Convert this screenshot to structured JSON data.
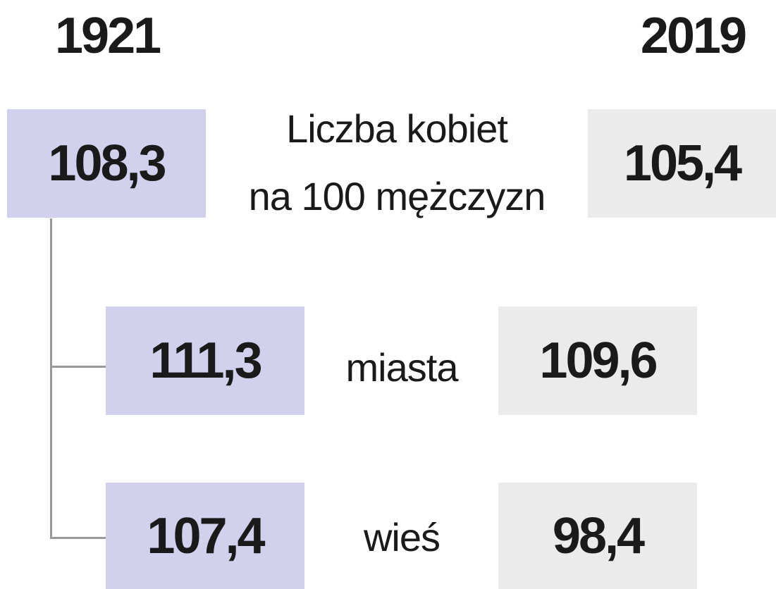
{
  "years": [
    "1921",
    "2019"
  ],
  "rows": [
    {
      "label": [
        "Liczba kobiet",
        "na 100 mężczyzn"
      ],
      "values": [
        "108,3",
        "105,4"
      ]
    },
    {
      "label": [
        "miasta"
      ],
      "values": [
        "111,3",
        "109,6"
      ]
    },
    {
      "label": [
        "wieś"
      ],
      "values": [
        "107,4",
        "98,4"
      ]
    }
  ]
}
